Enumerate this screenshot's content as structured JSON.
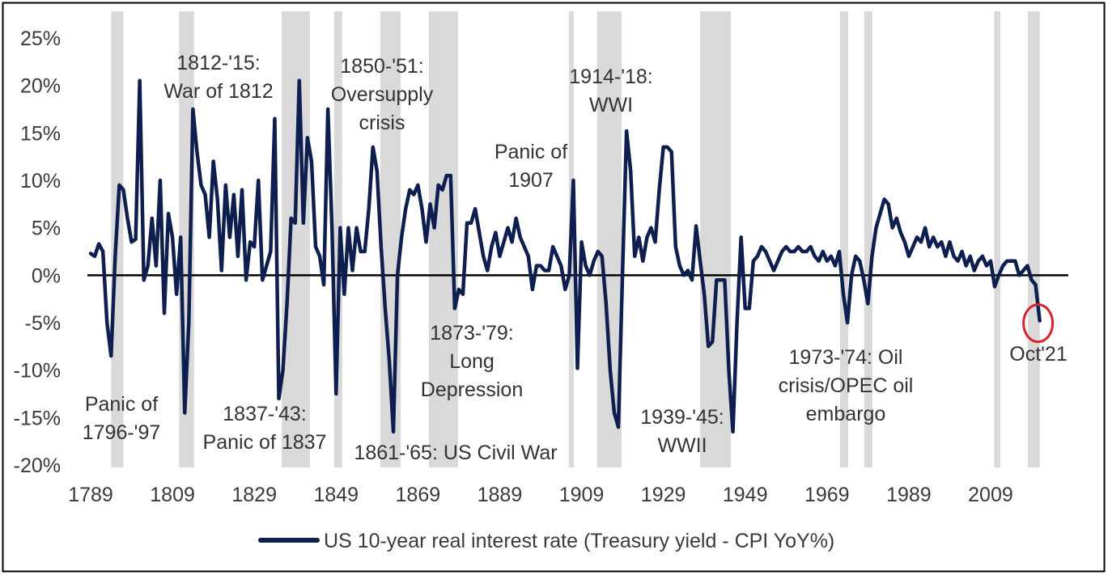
{
  "chart_data": {
    "type": "line",
    "x": [
      1789,
      1790,
      1791,
      1792,
      1793,
      1794,
      1795,
      1796,
      1797,
      1798,
      1799,
      1800,
      1801,
      1802,
      1803,
      1804,
      1805,
      1806,
      1807,
      1808,
      1809,
      1810,
      1811,
      1812,
      1813,
      1814,
      1815,
      1816,
      1817,
      1818,
      1819,
      1820,
      1821,
      1822,
      1823,
      1824,
      1825,
      1826,
      1827,
      1828,
      1829,
      1830,
      1831,
      1832,
      1833,
      1834,
      1835,
      1836,
      1837,
      1838,
      1839,
      1840,
      1841,
      1842,
      1843,
      1844,
      1845,
      1846,
      1847,
      1848,
      1849,
      1850,
      1851,
      1852,
      1853,
      1854,
      1855,
      1856,
      1857,
      1858,
      1859,
      1860,
      1861,
      1862,
      1863,
      1864,
      1865,
      1866,
      1867,
      1868,
      1869,
      1870,
      1871,
      1872,
      1873,
      1874,
      1875,
      1876,
      1877,
      1878,
      1879,
      1880,
      1881,
      1882,
      1883,
      1884,
      1885,
      1886,
      1887,
      1888,
      1889,
      1890,
      1891,
      1892,
      1893,
      1894,
      1895,
      1896,
      1897,
      1898,
      1899,
      1900,
      1901,
      1902,
      1903,
      1904,
      1905,
      1906,
      1907,
      1908,
      1909,
      1910,
      1911,
      1912,
      1913,
      1914,
      1915,
      1916,
      1917,
      1918,
      1919,
      1920,
      1921,
      1922,
      1923,
      1924,
      1925,
      1926,
      1927,
      1928,
      1929,
      1930,
      1931,
      1932,
      1933,
      1934,
      1935,
      1936,
      1937,
      1938,
      1939,
      1940,
      1941,
      1942,
      1943,
      1944,
      1945,
      1946,
      1947,
      1948,
      1949,
      1950,
      1951,
      1952,
      1953,
      1954,
      1955,
      1956,
      1957,
      1958,
      1959,
      1960,
      1961,
      1962,
      1963,
      1964,
      1965,
      1966,
      1967,
      1968,
      1969,
      1970,
      1971,
      1972,
      1973,
      1974,
      1975,
      1976,
      1977,
      1978,
      1979,
      1980,
      1981,
      1982,
      1983,
      1984,
      1985,
      1986,
      1987,
      1988,
      1989,
      1990,
      1991,
      1992,
      1993,
      1994,
      1995,
      1996,
      1997,
      1998,
      1999,
      2000,
      2001,
      2002,
      2003,
      2004,
      2005,
      2006,
      2007,
      2008,
      2009,
      2010,
      2011,
      2012,
      2013,
      2014,
      2015,
      2016,
      2017,
      2018,
      2019,
      2020,
      2021
    ],
    "series": [
      {
        "name": "US 10-year real interest rate (Treasury yield - CPI YoY%)",
        "color": "#0e1f4f",
        "values": [
          2.3,
          2,
          3.3,
          2.5,
          -5,
          -8.5,
          2,
          9.5,
          9,
          6,
          3.5,
          3.8,
          20.5,
          -0.5,
          1,
          6,
          1,
          10,
          -4,
          6.5,
          4,
          -2,
          4,
          -14.5,
          -5,
          17.5,
          13,
          9.5,
          8.5,
          4,
          12,
          8,
          0.5,
          9.5,
          4,
          8.5,
          2,
          9,
          -0.5,
          3.5,
          3,
          10,
          -0.5,
          1,
          2.5,
          16.5,
          -13,
          -10,
          -3,
          6,
          5.5,
          20.5,
          5.5,
          14.5,
          12,
          3,
          2,
          -1,
          17.5,
          5,
          -12.5,
          5,
          -2,
          5,
          0.5,
          5,
          2.5,
          2.5,
          7,
          13.5,
          11,
          3,
          -3.5,
          -9,
          -16.5,
          0,
          4,
          7,
          9,
          8.5,
          9.5,
          7,
          3.5,
          7.5,
          5,
          9.5,
          9,
          10.5,
          10.5,
          -3.5,
          -1.5,
          -2,
          5.5,
          5.5,
          7,
          4.5,
          2,
          0.5,
          3,
          4.5,
          2,
          3.5,
          5,
          3.5,
          6,
          4,
          3,
          2,
          -1.5,
          1,
          1,
          0.5,
          0.5,
          3,
          2,
          1,
          -1.5,
          0,
          10,
          -9.8,
          3.5,
          1,
          0,
          1.5,
          2.5,
          2,
          -3,
          -10,
          -14.5,
          -16,
          0,
          15.2,
          11,
          2,
          4,
          1.5,
          4,
          5,
          3.5,
          9,
          13.5,
          13.5,
          13,
          3,
          1,
          0,
          0.5,
          -0.5,
          5.2,
          1.5,
          -2,
          -7.5,
          -7,
          -0.5,
          -0.5,
          -0.5,
          -10,
          -16.5,
          -5,
          4,
          -3.5,
          -3.5,
          1.5,
          2,
          3,
          2.5,
          1.5,
          0.5,
          1.5,
          2.5,
          3,
          2.5,
          2.5,
          3,
          2.5,
          2.5,
          3,
          2,
          1.5,
          2.5,
          1.5,
          2,
          1,
          2.5,
          -2,
          -5,
          0,
          2,
          1.5,
          -0.5,
          -3,
          2,
          5,
          6.5,
          8,
          7.5,
          5,
          6,
          4.5,
          3.5,
          2,
          3,
          4,
          3.5,
          5,
          3,
          4,
          3,
          3.5,
          2,
          3.5,
          2,
          1.5,
          2.5,
          1,
          2,
          0.5,
          1.5,
          2,
          1,
          1.5,
          -1.2,
          0,
          1,
          1.5,
          1.5,
          1.5,
          0,
          0.5,
          1,
          -0.5,
          -1,
          -4.8
        ]
      }
    ],
    "periods": [
      [
        1794,
        1797
      ],
      [
        1810.6,
        1814.3
      ],
      [
        1835.7,
        1842.6
      ],
      [
        1848.5,
        1850.5
      ],
      [
        1859.8,
        1864.8
      ],
      [
        1871.7,
        1878.8
      ],
      [
        1905.9,
        1907.1
      ],
      [
        1912.8,
        1918.8
      ],
      [
        1938,
        1945.5
      ],
      [
        1972.2,
        1974.2
      ],
      [
        1978.1,
        1980.1
      ],
      [
        2009.9,
        2011.4
      ],
      [
        2018.1,
        2021
      ]
    ],
    "period_color": "#d9d9d9",
    "annotations": [
      {
        "lines": [
          "Panic of",
          "1796-'97"
        ]
      },
      {
        "lines": [
          "1812-'15:",
          "War of 1812"
        ]
      },
      {
        "lines": [
          "1837-'43:",
          "Panic of 1837"
        ]
      },
      {
        "lines": [
          "1850-'51:",
          "Oversupply",
          "crisis"
        ]
      },
      {
        "lines": [
          "1861-'65: US Civil War"
        ]
      },
      {
        "lines": [
          "1873-'79:",
          "Long",
          "Depression"
        ]
      },
      {
        "lines": [
          "Panic of",
          "1907"
        ]
      },
      {
        "lines": [
          "1914-'18:",
          "WWI"
        ]
      },
      {
        "lines": [
          "1939-'45:",
          "WWII"
        ]
      },
      {
        "lines": [
          "1973-'74: Oil",
          "crisis/OPEC oil",
          "embargo"
        ]
      },
      {
        "lines": [
          "Oct'21"
        ]
      }
    ],
    "highlight_color": "#d9232a",
    "xlim": [
      1789,
      2028
    ],
    "xticks": [
      1789,
      1809,
      1829,
      1849,
      1869,
      1889,
      1909,
      1929,
      1949,
      1969,
      1989,
      2009
    ],
    "ylim": [
      -20,
      25
    ],
    "yticks": [
      {
        "value": -20,
        "label": "-20%"
      },
      {
        "value": -15,
        "label": "-15%"
      },
      {
        "value": -10,
        "label": "-10%"
      },
      {
        "value": -5,
        "label": "-5%"
      },
      {
        "value": 0,
        "label": "0%"
      },
      {
        "value": 5,
        "label": "5%"
      },
      {
        "value": 10,
        "label": "10%"
      },
      {
        "value": 15,
        "label": "15%"
      },
      {
        "value": 20,
        "label": "20%"
      },
      {
        "value": 25,
        "label": "25%"
      }
    ],
    "legend": "bottom"
  }
}
